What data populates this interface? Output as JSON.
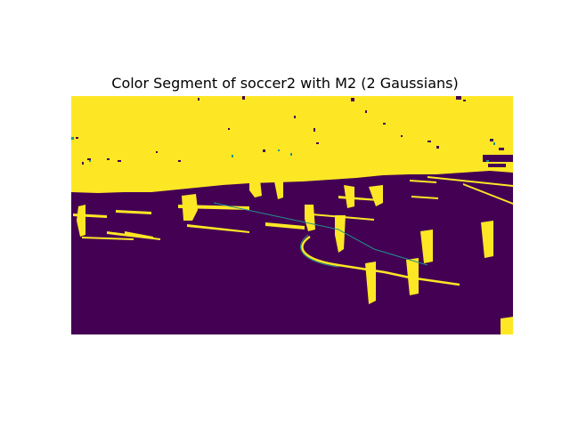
{
  "figure": {
    "title": "Color Segment of soccer2 with M2 (2 Gaussians)"
  },
  "colors": {
    "background_class": "#440154",
    "foreground_class": "#fde725",
    "edge_class": "#21918c",
    "page": "#ffffff"
  },
  "segmentation": {
    "colormap": "viridis",
    "classes": 2
  }
}
